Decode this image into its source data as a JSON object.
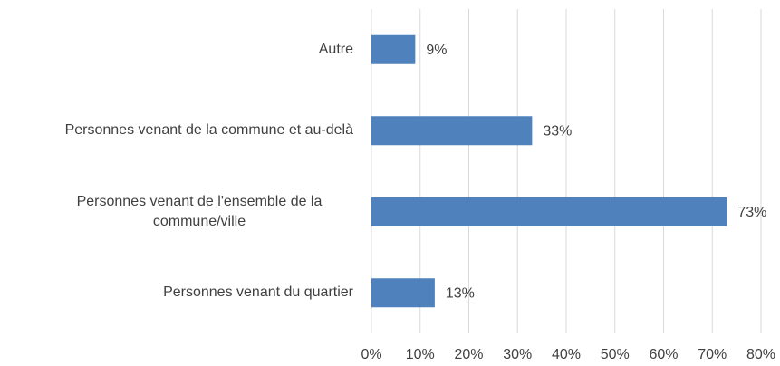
{
  "chart_data": {
    "type": "barh",
    "categories": [
      "Autre",
      "Personnes venant de la commune et au-delà",
      "Personnes venant de l'ensemble de la commune/ville",
      "Personnes venant du quartier"
    ],
    "values": [
      9,
      33,
      73,
      13
    ],
    "value_labels": [
      "9%",
      "33%",
      "73%",
      "13%"
    ],
    "color": "#4f81bd",
    "xlim": [
      0,
      80
    ],
    "xticks": [
      {
        "value": 0,
        "label": "0%"
      },
      {
        "value": 10,
        "label": "10%"
      },
      {
        "value": 20,
        "label": "20%"
      },
      {
        "value": 30,
        "label": "30%"
      },
      {
        "value": 40,
        "label": "40%"
      },
      {
        "value": 50,
        "label": "50%"
      },
      {
        "value": 60,
        "label": "60%"
      },
      {
        "value": 70,
        "label": "70%"
      },
      {
        "value": 80,
        "label": "80%"
      }
    ],
    "grid": true
  }
}
